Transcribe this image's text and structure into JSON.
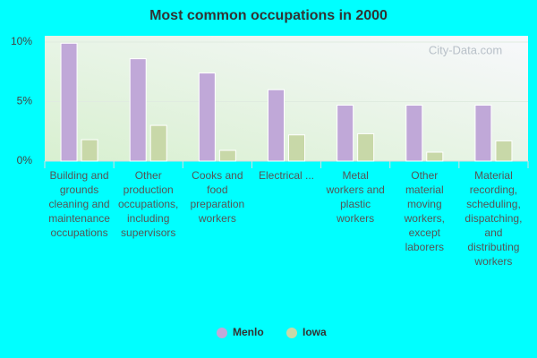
{
  "chart_data": {
    "type": "bar",
    "title": "Most common occupations in 2000",
    "watermark": "City-Data.com",
    "categories": [
      "Building and grounds cleaning and maintenance occupations",
      "Other production occupations, including supervisors",
      "Cooks and food preparation workers",
      "Electrical ...",
      "Metal workers and plastic workers",
      "Other material moving workers, except laborers",
      "Material recording, scheduling, dispatching, and distributing workers"
    ],
    "series": [
      {
        "name": "Menlo",
        "color": "#c0a8d8",
        "values": [
          9.9,
          8.6,
          7.4,
          6.0,
          4.7,
          4.7,
          4.7
        ]
      },
      {
        "name": "Iowa",
        "color": "#c8d8a8",
        "values": [
          1.8,
          3.0,
          0.9,
          2.2,
          2.3,
          0.75,
          1.7
        ]
      }
    ],
    "ylim": [
      0,
      10
    ],
    "yticks": [
      {
        "value": 0,
        "label": "0%"
      },
      {
        "value": 5,
        "label": "5%"
      },
      {
        "value": 10,
        "label": "10%"
      }
    ],
    "grid": true,
    "legend": "bottom"
  }
}
